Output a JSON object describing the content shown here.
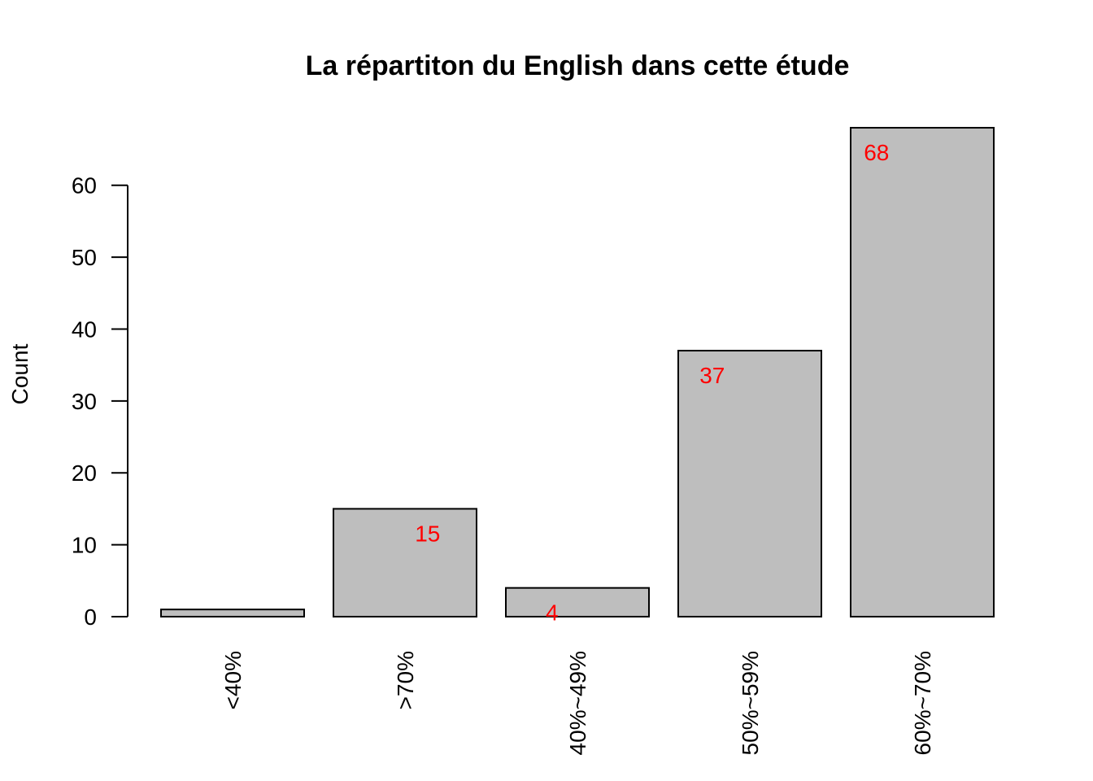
{
  "chart_data": {
    "type": "bar",
    "title": "La répartiton du English  dans cette étude",
    "xlabel": "",
    "ylabel": "Count",
    "categories": [
      "<40%",
      ">70%",
      "40%~49%",
      "50%~59%",
      "60%~70%"
    ],
    "values": [
      1,
      15,
      4,
      37,
      68
    ],
    "data_labels": [
      "",
      "15",
      "4",
      "37",
      "68"
    ],
    "yticks": [
      0,
      10,
      20,
      30,
      40,
      50,
      60
    ],
    "ylim": [
      0,
      68
    ],
    "bar_color": "#bebebe",
    "bar_border_color": "#000000",
    "label_color": "#ff0000",
    "grid": false,
    "legend": "none"
  }
}
